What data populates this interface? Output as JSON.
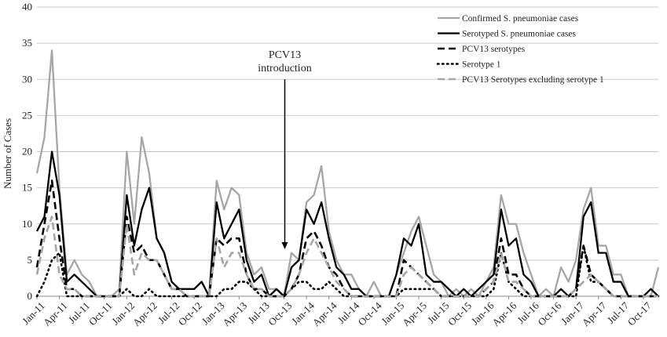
{
  "chart_data": {
    "type": "line",
    "ylabel": "Number of Cases",
    "xlabel": "",
    "ylim": [
      0,
      40
    ],
    "yticks": [
      0,
      5,
      10,
      15,
      20,
      25,
      30,
      35,
      40
    ],
    "grid": "horizontal",
    "legend_position": "top-right",
    "x": [
      "Jan-11",
      "Feb-11",
      "Mar-11",
      "Apr-11",
      "May-11",
      "Jun-11",
      "Jul-11",
      "Aug-11",
      "Sep-11",
      "Oct-11",
      "Nov-11",
      "Dec-11",
      "Jan-12",
      "Feb-12",
      "Mar-12",
      "Apr-12",
      "May-12",
      "Jun-12",
      "Jul-12",
      "Aug-12",
      "Sep-12",
      "Oct-12",
      "Nov-12",
      "Dec-12",
      "Jan-13",
      "Feb-13",
      "Mar-13",
      "Apr-13",
      "May-13",
      "Jun-13",
      "Jul-13",
      "Aug-13",
      "Sep-13",
      "Oct-13",
      "Nov-13",
      "Dec-13",
      "Jan-14",
      "Feb-14",
      "Mar-14",
      "Apr-14",
      "May-14",
      "Jun-14",
      "Jul-14",
      "Aug-14",
      "Sep-14",
      "Oct-14",
      "Nov-14",
      "Dec-14",
      "Jan-15",
      "Feb-15",
      "Mar-15",
      "Apr-15",
      "May-15",
      "Jun-15",
      "Jul-15",
      "Aug-15",
      "Sep-15",
      "Oct-15",
      "Nov-15",
      "Dec-15",
      "Jan-16",
      "Feb-16",
      "Mar-16",
      "Apr-16",
      "May-16",
      "Jun-16",
      "Jul-16",
      "Aug-16",
      "Sep-16",
      "Oct-16",
      "Nov-16",
      "Dec-16",
      "Jan-17",
      "Feb-17",
      "Mar-17",
      "Apr-17",
      "May-17",
      "Jun-17",
      "Jul-17",
      "Aug-17",
      "Sep-17",
      "Oct-17",
      "Nov-17",
      "Dec-17"
    ],
    "xtick_labels": [
      "Jan-11",
      "Apr-11",
      "Jul-11",
      "Oct-11",
      "Jan-12",
      "Apr-12",
      "Jul-12",
      "Oct-12",
      "Jan-13",
      "Apr-13",
      "Jul-13",
      "Oct-13",
      "Jan-14",
      "Apr-14",
      "Jul-14",
      "Oct-14",
      "Jan-15",
      "Apr-15",
      "Jul-15",
      "Oct-15",
      "Jan-16",
      "Apr-16",
      "Jul-16",
      "Oct-16",
      "Jan-17",
      "Apr-17",
      "Jul-17",
      "Oct-17"
    ],
    "series": [
      {
        "name": "Confirmed S. pneumoniae cases",
        "color": "#a6a6a6",
        "style": "solid",
        "values": [
          17,
          22,
          34,
          15,
          3,
          5,
          3,
          2,
          0,
          0,
          0,
          1,
          20,
          10,
          22,
          17,
          8,
          6,
          2,
          1,
          1,
          1,
          2,
          0,
          16,
          12,
          15,
          14,
          6,
          3,
          4,
          1,
          1,
          0,
          6,
          5,
          13,
          14,
          18,
          9,
          5,
          3,
          3,
          1,
          0,
          2,
          0,
          0,
          3,
          6,
          9,
          11,
          7,
          3,
          2,
          0,
          1,
          0,
          1,
          0,
          2,
          4,
          14,
          10,
          10,
          6,
          3,
          0,
          1,
          0,
          4,
          2,
          5,
          12,
          15,
          7,
          7,
          3,
          3,
          0,
          0,
          0,
          0,
          4
        ]
      },
      {
        "name": "Serotyped S. pneumoniae cases",
        "color": "#000000",
        "style": "solid",
        "values": [
          9,
          11,
          20,
          14,
          2,
          3,
          2,
          1,
          0,
          0,
          0,
          0,
          14,
          7,
          12,
          15,
          8,
          6,
          2,
          1,
          1,
          1,
          2,
          0,
          13,
          8,
          10,
          12,
          5,
          2,
          3,
          0,
          1,
          0,
          4,
          5,
          12,
          10,
          13,
          8,
          4,
          3,
          1,
          1,
          0,
          0,
          0,
          0,
          3,
          8,
          7,
          10,
          3,
          2,
          2,
          1,
          0,
          1,
          0,
          1,
          2,
          3,
          12,
          7,
          8,
          3,
          2,
          0,
          0,
          0,
          1,
          0,
          1,
          11,
          13,
          6,
          6,
          2,
          2,
          0,
          0,
          0,
          1,
          0
        ]
      },
      {
        "name": "PCV13 serotypes",
        "color": "#000000",
        "style": "dash",
        "values": [
          4,
          10,
          16,
          8,
          1,
          1,
          0,
          0,
          0,
          0,
          0,
          0,
          11,
          6,
          7,
          5,
          5,
          3,
          1,
          1,
          0,
          0,
          0,
          0,
          8,
          7,
          8,
          8,
          3,
          1,
          1,
          0,
          0,
          0,
          1,
          3,
          8,
          9,
          7,
          4,
          3,
          1,
          0,
          0,
          0,
          0,
          0,
          0,
          0,
          5,
          4,
          3,
          2,
          1,
          0,
          0,
          0,
          0,
          0,
          0,
          1,
          2,
          8,
          3,
          3,
          1,
          0,
          0,
          0,
          0,
          0,
          0,
          1,
          7,
          3,
          2,
          1,
          0,
          0,
          0,
          0,
          0,
          0,
          0
        ]
      },
      {
        "name": "Serotype 1",
        "color": "#000000",
        "style": "dot",
        "values": [
          0,
          2,
          5,
          6,
          0,
          0,
          0,
          0,
          0,
          0,
          0,
          0,
          1,
          0,
          0,
          1,
          0,
          0,
          0,
          0,
          0,
          0,
          0,
          0,
          0,
          1,
          1,
          2,
          2,
          1,
          0,
          0,
          0,
          0,
          1,
          2,
          2,
          1,
          1,
          2,
          1,
          0,
          0,
          0,
          0,
          0,
          0,
          0,
          0,
          1,
          1,
          1,
          1,
          1,
          0,
          0,
          0,
          0,
          0,
          0,
          0,
          1,
          6,
          2,
          1,
          0,
          0,
          0,
          0,
          0,
          0,
          0,
          0,
          7,
          2,
          2,
          1,
          0,
          0,
          0,
          0,
          0,
          0,
          0
        ]
      },
      {
        "name": "PCV13 Serotypes excluding serotype 1",
        "color": "#a6a6a6",
        "style": "dash",
        "values": [
          3,
          8,
          11,
          3,
          1,
          1,
          0,
          0,
          0,
          0,
          0,
          0,
          10,
          3,
          6,
          5,
          5,
          3,
          1,
          1,
          0,
          0,
          0,
          0,
          8,
          4,
          6,
          6,
          3,
          1,
          1,
          0,
          0,
          0,
          1,
          3,
          6,
          8,
          6,
          4,
          2,
          1,
          0,
          0,
          0,
          0,
          0,
          0,
          0,
          3,
          4,
          3,
          2,
          1,
          0,
          0,
          0,
          0,
          0,
          0,
          1,
          2,
          6,
          2,
          2,
          1,
          0,
          0,
          0,
          0,
          0,
          0,
          1,
          2,
          3,
          2,
          1,
          0,
          0,
          0,
          0,
          0,
          0,
          0
        ]
      }
    ],
    "annotations": [
      {
        "text_lines": [
          "PCV13",
          "introduction"
        ],
        "x": "Oct-13",
        "arrow_from": 30,
        "arrow_to": 6.5
      }
    ]
  }
}
